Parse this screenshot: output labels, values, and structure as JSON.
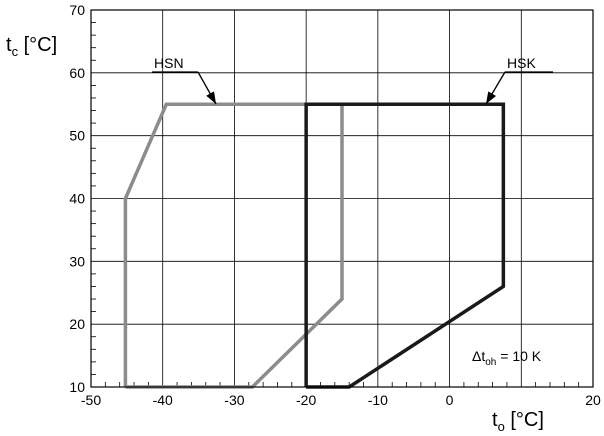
{
  "chart_data": {
    "type": "line",
    "xlim": [
      -50,
      20
    ],
    "ylim": [
      10,
      70
    ],
    "xticks": [
      -50,
      -40,
      -30,
      -20,
      -10,
      0,
      20
    ],
    "yticks": [
      10,
      20,
      30,
      40,
      50,
      60,
      70
    ],
    "grid": true,
    "legend": "none",
    "xlabel": {
      "main": "t",
      "sub": "o",
      "unit": " [°C]"
    },
    "ylabel": {
      "main": "t",
      "sub": "c",
      "unit": " [°C]"
    },
    "annotation": {
      "symbol": "Δt",
      "sub": "oh",
      "text": " = 10 K"
    },
    "series": [
      {
        "name": "HSN",
        "color": "#8c8c8c",
        "points": [
          [
            -45.2,
            10
          ],
          [
            -45.2,
            40
          ],
          [
            -39.5,
            55
          ],
          [
            -15,
            55
          ],
          [
            -15,
            24
          ],
          [
            -27.5,
            10
          ],
          [
            -45.2,
            10
          ]
        ]
      },
      {
        "name": "HSK",
        "color": "#1a1a1a",
        "points": [
          [
            -20,
            10
          ],
          [
            -20,
            55
          ],
          [
            7.5,
            55
          ],
          [
            7.5,
            26
          ],
          [
            -14,
            10
          ],
          [
            -20,
            10
          ]
        ]
      }
    ]
  }
}
